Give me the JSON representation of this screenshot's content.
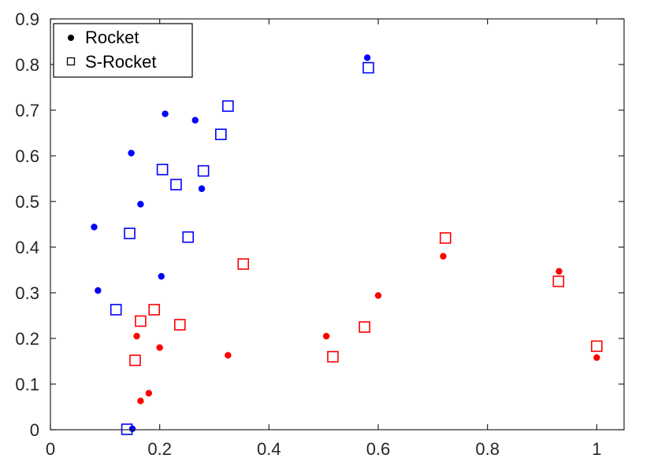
{
  "chart_data": {
    "type": "scatter",
    "title": "",
    "xlabel": "",
    "ylabel": "",
    "xlim": [
      0,
      1.05
    ],
    "ylim": [
      0,
      0.9
    ],
    "x_ticks": [
      0,
      0.2,
      0.4,
      0.6,
      0.8,
      1
    ],
    "x_tick_labels": [
      "0",
      "0.2",
      "0.4",
      "0.6",
      "0.8",
      "1"
    ],
    "y_ticks": [
      0,
      0.1,
      0.2,
      0.3,
      0.4,
      0.5,
      0.6,
      0.7,
      0.8,
      0.9
    ],
    "y_tick_labels": [
      "0",
      "0.1",
      "0.2",
      "0.3",
      "0.4",
      "0.5",
      "0.6",
      "0.7",
      "0.8",
      "0.9"
    ],
    "grid": false,
    "legend": {
      "position": "top-left",
      "entries": [
        {
          "label": "Rocket",
          "marker": "filled-circle"
        },
        {
          "label": "S-Rocket",
          "marker": "open-square"
        }
      ]
    },
    "colors": {
      "blue": "#0000ff",
      "red": "#ff0000"
    },
    "series": [
      {
        "name": "Rocket",
        "marker": "filled-circle",
        "group": "blue",
        "color": "#0000ff",
        "points": [
          [
            0.58,
            0.815
          ],
          [
            0.21,
            0.692
          ],
          [
            0.265,
            0.678
          ],
          [
            0.148,
            0.606
          ],
          [
            0.277,
            0.528
          ],
          [
            0.165,
            0.494
          ],
          [
            0.08,
            0.444
          ],
          [
            0.087,
            0.305
          ],
          [
            0.203,
            0.336
          ],
          [
            0.15,
            0.002
          ]
        ]
      },
      {
        "name": "Rocket",
        "marker": "filled-circle",
        "group": "red",
        "color": "#ff0000",
        "points": [
          [
            0.719,
            0.38
          ],
          [
            0.931,
            0.347
          ],
          [
            0.6,
            0.294
          ],
          [
            0.505,
            0.205
          ],
          [
            0.158,
            0.205
          ],
          [
            0.2,
            0.18
          ],
          [
            0.325,
            0.163
          ],
          [
            1.0,
            0.158
          ],
          [
            0.18,
            0.08
          ],
          [
            0.165,
            0.063
          ]
        ]
      },
      {
        "name": "S-Rocket",
        "marker": "open-square",
        "group": "blue",
        "color": "#0000ff",
        "points": [
          [
            0.582,
            0.793
          ],
          [
            0.325,
            0.709
          ],
          [
            0.312,
            0.647
          ],
          [
            0.205,
            0.57
          ],
          [
            0.28,
            0.567
          ],
          [
            0.23,
            0.537
          ],
          [
            0.145,
            0.43
          ],
          [
            0.252,
            0.422
          ],
          [
            0.12,
            0.263
          ],
          [
            0.14,
            0.001
          ]
        ]
      },
      {
        "name": "S-Rocket",
        "marker": "open-square",
        "group": "red",
        "color": "#ff0000",
        "points": [
          [
            0.723,
            0.42
          ],
          [
            0.353,
            0.363
          ],
          [
            0.93,
            0.325
          ],
          [
            0.19,
            0.263
          ],
          [
            0.165,
            0.238
          ],
          [
            0.237,
            0.23
          ],
          [
            0.575,
            0.225
          ],
          [
            1.0,
            0.183
          ],
          [
            0.517,
            0.16
          ],
          [
            0.155,
            0.152
          ]
        ]
      }
    ]
  }
}
